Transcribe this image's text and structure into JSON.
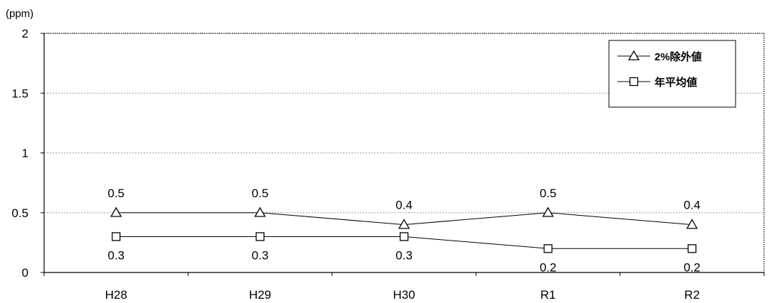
{
  "chart_data": {
    "type": "line",
    "title": "",
    "ylabel": "(ppm)",
    "xlabel": "",
    "categories": [
      "H28",
      "H29",
      "H30",
      "R1",
      "R2"
    ],
    "ylim": [
      0,
      2
    ],
    "yticks": [
      "0",
      "0.5",
      "1",
      "1.5",
      "2"
    ],
    "grid": true,
    "legend_position": "top-right",
    "series": [
      {
        "name": "2%除外値",
        "marker": "triangle",
        "values": [
          0.5,
          0.5,
          0.4,
          0.5,
          0.4
        ],
        "labels": [
          "0.5",
          "0.5",
          "0.4",
          "0.5",
          "0.4"
        ],
        "label_position": "above"
      },
      {
        "name": "年平均値",
        "marker": "square",
        "values": [
          0.3,
          0.3,
          0.3,
          0.2,
          0.2
        ],
        "labels": [
          "0.3",
          "0.3",
          "0.3",
          "0.2",
          "0.2"
        ],
        "label_position": "below"
      }
    ]
  }
}
